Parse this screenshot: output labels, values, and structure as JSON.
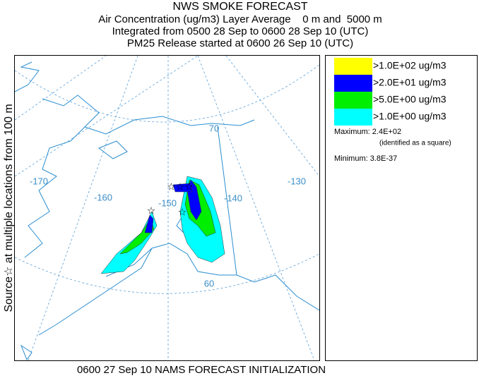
{
  "header": {
    "title": "NWS SMOKE FORECAST",
    "lines": [
      "Air Concentration (ug/m3) Layer Average    0 m and  5000 m",
      "Integrated from 0500 28 Sep to 0600 28 Sep 10 (UTC)",
      "PM25 Release started at 0600 26 Sep 10 (UTC)"
    ]
  },
  "side_label": "Source☆ at multiple locations from 100 m",
  "map": {
    "graticule_labels": [
      "-170",
      "-160",
      "-150",
      "-140",
      "-130",
      "70",
      "60"
    ]
  },
  "legend": {
    "entries": [
      {
        "label": ">1.0E+02 ug/m3",
        "color": "#ffff00"
      },
      {
        "label": ">2.0E+01 ug/m3",
        "color": "#0000ff"
      },
      {
        "label": ">5.0E+00 ug/m3",
        "color": "#00ee00"
      },
      {
        "label": ">1.0E+00 ug/m3",
        "color": "#00ffff"
      }
    ],
    "maximum": "Maximum: 2.4E+02",
    "max_note": "(identified as a square)",
    "minimum": "Minimum: 3.8E-37"
  },
  "footer": "0600 27 Sep 10 NAMS FORECAST INITIALIZATION"
}
